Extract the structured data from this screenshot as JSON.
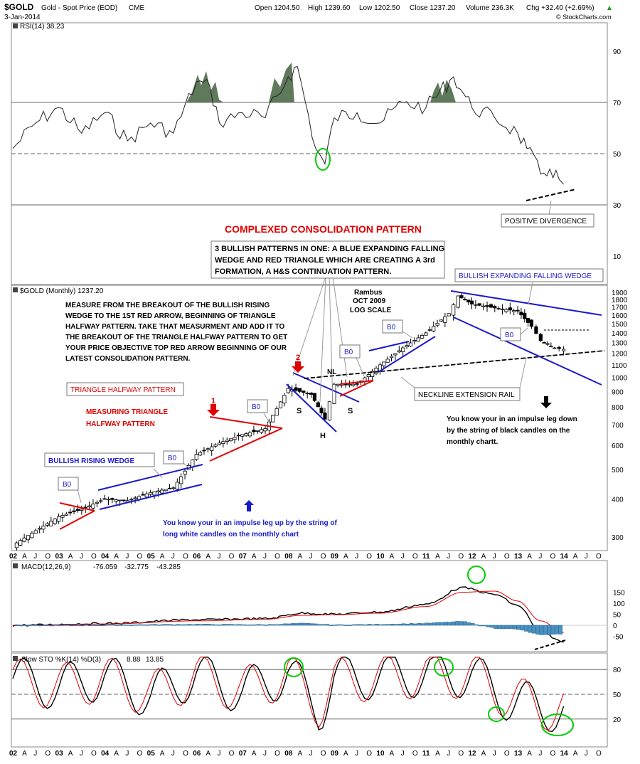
{
  "header": {
    "symbol": "$GOLD",
    "name": "Gold - Spot Price (EOD)",
    "exchange": "CME",
    "date": "3-Jan-2014",
    "open": "Open 1204.50",
    "high": "High 1239.60",
    "low": "Low 1202.50",
    "close": "Close 1237.20",
    "volume": "Volume 236.3K",
    "chg": "Chg +32.40 (+2.69%)",
    "chg_arrow": "▲",
    "credit": "© StockCharts.com"
  },
  "colors": {
    "up_candle": "#ffffff",
    "down_candle": "#000000",
    "trend_blue": "#1a1acc",
    "trend_red": "#e00000",
    "rsi_fill": "#5e7a5a",
    "macd_hist": "#4a90c0",
    "signal_red": "#e00000",
    "circle_green": "#00cc00"
  },
  "rsi": {
    "label": "RSI(14) 38.23",
    "ticks": [
      "90",
      "70",
      "50",
      "30",
      "10"
    ]
  },
  "price_panel": {
    "label": "$GOLD (Monthly) 1237.20",
    "ticks": [
      "1900",
      "1800",
      "1700",
      "1600",
      "1500",
      "1400",
      "1300",
      "1200",
      "1100",
      "1000",
      "900",
      "800",
      "700",
      "600",
      "500",
      "400",
      "300"
    ]
  },
  "macd": {
    "label": "MACD(12,26,9)",
    "v1": "-76.059",
    "v2": "-32.775",
    "v3": "-43.285",
    "ticks": [
      "150",
      "100",
      "50",
      "0",
      "-50"
    ]
  },
  "sto": {
    "label": "Slow STO %K(14) %D(3)",
    "k": "8.88",
    "d": "13.85",
    "ticks": [
      "80",
      "50",
      "20"
    ]
  },
  "xaxis": [
    "02",
    "A",
    "J",
    "O",
    "03",
    "A",
    "J",
    "O",
    "04",
    "A",
    "J",
    "O",
    "05",
    "A",
    "J",
    "O",
    "06",
    "A",
    "J",
    "O",
    "07",
    "A",
    "J",
    "O",
    "08",
    "A",
    "J",
    "O",
    "09",
    "A",
    "J",
    "O",
    "10",
    "A",
    "J",
    "O",
    "11",
    "A",
    "J",
    "O",
    "12",
    "A",
    "J",
    "O",
    "13",
    "A",
    "J",
    "O",
    "14",
    "A",
    "J",
    "O"
  ],
  "annotations": {
    "title": "COMPLEXED CONSOLIDATION PATTERN",
    "three_patterns": [
      "3 BULLISH PATTERNS IN ONE:  A BLUE EXPANDING FALLING",
      "WEDGE AND RED TRIANGLE WHICH ARE CREATING A 3rd",
      "FORMATION, A H&S CONTINUATION PATTERN."
    ],
    "measure": [
      "MEASURE FROM THE BREAKOUT OF THE BULLISH RISING",
      "WEDGE TO THE 1ST RED ARROW, BEGINNING OF TRIANGLE",
      "HALFWAY PATTERN. TAKE THAT MEASURMENT AND ADD IT TO",
      "THE BREAKOUT OF THE TRIANGLE HALFWAY PATTERN TO GET",
      "YOUR PRICE OBJECTIVE TOP RED ARROW BEGINNING OF OUR",
      "LATEST CONSOLIDATION PATTERN."
    ],
    "rambus": [
      "Rambus",
      "OCT 2009",
      "LOG SCALE"
    ],
    "positive_divergence": "POSITIVE DIVERGENCE",
    "bullish_expanding": "BULLISH EXPANDING FALLING WEDGE",
    "neckline": "NECKLINE EXTENSION RAIL",
    "triangle_halfway": "TRIANGLE HALFWAY PATTERN",
    "measuring_triangle": [
      "MEASURING TRIANGLE",
      "HALFWAY PATTERN"
    ],
    "bullish_rising": "BULLISH RISING WEDGE",
    "impulse_up": [
      "You know your in an impulse leg up by the string of",
      "long white candles on the monthly chart"
    ],
    "impulse_down": [
      "You know your in an impulse leg down",
      "by the string of black candles on the",
      "monthly chartt."
    ],
    "bo": "B0",
    "arrow1": "1",
    "arrow2": "2",
    "s": "S",
    "h": "H",
    "nl": "NL"
  },
  "chart_data": [
    {
      "type": "line",
      "title": "RSI(14) 38.23",
      "ylim": [
        0,
        100
      ],
      "x": [
        2002.0,
        2002.5,
        2003.0,
        2003.5,
        2004.0,
        2004.5,
        2005.0,
        2005.5,
        2006.0,
        2006.3,
        2006.5,
        2007.0,
        2007.5,
        2008.0,
        2008.2,
        2008.6,
        2008.8,
        2009.0,
        2009.5,
        2010.0,
        2010.5,
        2011.0,
        2011.6,
        2011.8,
        2012.0,
        2012.5,
        2013.0,
        2013.2,
        2013.5,
        2013.7,
        2013.9,
        2014.0
      ],
      "values": [
        52,
        62,
        68,
        58,
        66,
        55,
        62,
        58,
        78,
        76,
        62,
        66,
        64,
        80,
        84,
        52,
        46,
        64,
        66,
        62,
        70,
        68,
        80,
        74,
        68,
        64,
        58,
        52,
        42,
        44,
        40,
        38
      ],
      "reference_lines": [
        70,
        50,
        30
      ]
    },
    {
      "type": "bar",
      "title": "$GOLD (Monthly) 1237.20",
      "scale": "log",
      "ylim": [
        280,
        1950
      ],
      "x": [
        2002.0,
        2002.5,
        2003.0,
        2003.5,
        2004.0,
        2004.5,
        2005.0,
        2005.5,
        2006.0,
        2006.5,
        2007.0,
        2007.5,
        2008.0,
        2008.5,
        2008.8,
        2009.0,
        2009.5,
        2010.0,
        2010.5,
        2011.0,
        2011.5,
        2011.7,
        2012.0,
        2012.5,
        2013.0,
        2013.3,
        2013.5,
        2013.8,
        2014.0
      ],
      "values": [
        282,
        315,
        350,
        370,
        400,
        395,
        420,
        435,
        560,
        610,
        650,
        680,
        920,
        880,
        730,
        950,
        950,
        1100,
        1250,
        1400,
        1620,
        1850,
        1740,
        1690,
        1650,
        1470,
        1320,
        1250,
        1237
      ]
    },
    {
      "type": "line",
      "title": "MACD(12,26,9)",
      "series": [
        {
          "name": "MACD(12,26,9)",
          "x": [
            2002,
            2004,
            2006,
            2007.5,
            2008.3,
            2009,
            2010,
            2011,
            2011.8,
            2012.5,
            2013,
            2013.5,
            2014
          ],
          "values": [
            0,
            8,
            25,
            30,
            55,
            50,
            60,
            95,
            170,
            140,
            90,
            -30,
            -76
          ]
        },
        {
          "name": "Signal",
          "x": [
            2002,
            2004,
            2006,
            2007.5,
            2008.3,
            2009,
            2010,
            2011,
            2011.8,
            2012.5,
            2013,
            2013.5,
            2014
          ],
          "values": [
            0,
            6,
            20,
            27,
            45,
            48,
            55,
            85,
            150,
            155,
            110,
            20,
            -33
          ]
        }
      ],
      "ylim": [
        -75,
        175
      ]
    },
    {
      "type": "line",
      "title": "Slow STO %K(14) %D(3) 8.88 13.85",
      "series": [
        {
          "name": "%K",
          "x": [
            2002,
            2003,
            2004,
            2005,
            2006,
            2007,
            2008,
            2008.7,
            2009,
            2010,
            2011,
            2012,
            2012.8,
            2013.5,
            2014
          ],
          "values": [
            80,
            60,
            85,
            40,
            90,
            50,
            92,
            10,
            80,
            85,
            90,
            88,
            35,
            15,
            9
          ]
        },
        {
          "name": "%D",
          "x": [
            2002,
            2003,
            2004,
            2005,
            2006,
            2007,
            2008,
            2008.7,
            2009,
            2010,
            2011,
            2012,
            2012.8,
            2013.5,
            2014
          ],
          "values": [
            75,
            62,
            80,
            45,
            85,
            55,
            88,
            20,
            75,
            82,
            88,
            86,
            40,
            18,
            14
          ]
        }
      ],
      "ylim": [
        0,
        100
      ],
      "reference_lines": [
        80,
        50,
        20
      ]
    }
  ]
}
